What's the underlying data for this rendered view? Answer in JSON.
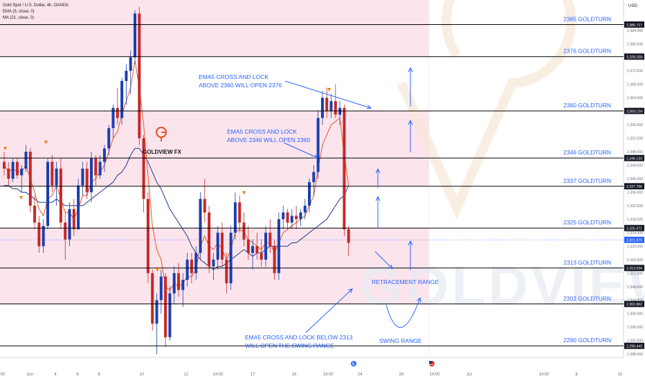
{
  "header": {
    "symbol": "Gold Spot / U.S. Dollar, 4h, OANDA",
    "ema_label": "EMA (5, close, 0)",
    "ma_label": "MA (21, close, 0)",
    "currency": "USD"
  },
  "colors": {
    "zone_pink": "#fce4ec",
    "level_line": "#000000",
    "annotation_blue": "#2962ff",
    "bull_candle": "#1a3fb0",
    "bear_candle": "#c62828",
    "ema_line": "#e8572a",
    "ma_line": "#1e3a8a",
    "price_tag_current": "#2962ff"
  },
  "chart_data": {
    "type": "candlestick",
    "y_range": [
      2287,
      2393
    ],
    "y_ticks": [
      "2,384.000",
      "2,380.000",
      "2,376.000",
      "2,372.000",
      "2,368.000",
      "2,364.000",
      "2,360.000",
      "2,356.000",
      "2,352.000",
      "2,348.000",
      "2,344.000",
      "2,340.000",
      "2,336.000",
      "2,332.000",
      "2,328.000",
      "2,324.000",
      "2,320.000",
      "2,316.000",
      "2,312.000",
      "2,308.000",
      "2,304.000",
      "2,300.000",
      "2,296.000",
      "2,292.000",
      "2,288.000"
    ],
    "x_labels": [
      ":00",
      "Jun",
      "4",
      "6",
      "8",
      "10",
      "12",
      "14:00",
      "17",
      "19",
      "14:00",
      "24",
      "26",
      "14:00",
      "Jul",
      "14:00",
      "8",
      "10"
    ],
    "levels": [
      {
        "value": 2385.717,
        "price_label": "2,385.717",
        "turn_label": "2385 GOLDTURN"
      },
      {
        "value": 2376.209,
        "price_label": "2,376.209",
        "turn_label": "2376 GOLDTURN"
      },
      {
        "value": 2360.104,
        "price_label": "2,360.104",
        "turn_label": "2360 GOLDTURN"
      },
      {
        "value": 2346.133,
        "price_label": "2,346.133",
        "turn_label": "2346 GOLDTURN"
      },
      {
        "value": 2337.766,
        "price_label": "2,337.766",
        "turn_label": "2337 GOLDTURN"
      },
      {
        "value": 2325.371,
        "price_label": "2,325.371",
        "turn_label": "2325 GOLDTURN"
      },
      {
        "value": 2313.534,
        "price_label": "2,313.534",
        "turn_label": "2313 GOLDTURN"
      },
      {
        "value": 2302.862,
        "price_label": "2,302.862",
        "turn_label": "2302 GOLDTURN"
      },
      {
        "value": 2290.443,
        "price_label": "2,290.443",
        "turn_label": "2290 GOLDTURN"
      }
    ],
    "current_price": {
      "value": 2321.875,
      "label": "2,321.875"
    },
    "zones": [
      [
        2376.209,
        2393
      ],
      [
        2337.766,
        2360.104
      ],
      [
        2302.862,
        2325.371
      ]
    ],
    "candles": [
      [
        2345,
        2348,
        2341,
        2343
      ],
      [
        2343,
        2345,
        2338,
        2340
      ],
      [
        2340,
        2346,
        2339,
        2345
      ],
      [
        2345,
        2346,
        2340,
        2341
      ],
      [
        2341,
        2344,
        2336,
        2343
      ],
      [
        2343,
        2350,
        2342,
        2348
      ],
      [
        2348,
        2349,
        2330,
        2332
      ],
      [
        2332,
        2335,
        2325,
        2327
      ],
      [
        2327,
        2329,
        2318,
        2320
      ],
      [
        2320,
        2328,
        2318,
        2326
      ],
      [
        2326,
        2346,
        2325,
        2345
      ],
      [
        2345,
        2347,
        2336,
        2338
      ],
      [
        2338,
        2345,
        2332,
        2343
      ],
      [
        2343,
        2346,
        2325,
        2327
      ],
      [
        2327,
        2330,
        2316,
        2322
      ],
      [
        2322,
        2333,
        2320,
        2331
      ],
      [
        2331,
        2334,
        2323,
        2325
      ],
      [
        2325,
        2340,
        2325,
        2338
      ],
      [
        2338,
        2345,
        2335,
        2343
      ],
      [
        2343,
        2345,
        2334,
        2336
      ],
      [
        2336,
        2348,
        2333,
        2346
      ],
      [
        2346,
        2347,
        2338,
        2341
      ],
      [
        2341,
        2347,
        2340,
        2345
      ],
      [
        2345,
        2350,
        2342,
        2349
      ],
      [
        2349,
        2356,
        2347,
        2355
      ],
      [
        2355,
        2362,
        2352,
        2361
      ],
      [
        2361,
        2367,
        2356,
        2358
      ],
      [
        2358,
        2370,
        2356,
        2369
      ],
      [
        2369,
        2374,
        2362,
        2372
      ],
      [
        2372,
        2378,
        2365,
        2376
      ],
      [
        2376,
        2390,
        2374,
        2389
      ],
      [
        2389,
        2391,
        2350,
        2352
      ],
      [
        2352,
        2353,
        2330,
        2334
      ],
      [
        2334,
        2336,
        2309,
        2312
      ],
      [
        2312,
        2313,
        2295,
        2297
      ],
      [
        2297,
        2306,
        2288,
        2304
      ],
      [
        2304,
        2313,
        2300,
        2311
      ],
      [
        2311,
        2312,
        2290,
        2293
      ],
      [
        2293,
        2308,
        2292,
        2306
      ],
      [
        2306,
        2314,
        2303,
        2312
      ],
      [
        2312,
        2315,
        2305,
        2307
      ],
      [
        2307,
        2312,
        2302,
        2310
      ],
      [
        2310,
        2318,
        2308,
        2316
      ],
      [
        2316,
        2318,
        2309,
        2312
      ],
      [
        2312,
        2320,
        2310,
        2318
      ],
      [
        2318,
        2336,
        2316,
        2334
      ],
      [
        2334,
        2340,
        2327,
        2330
      ],
      [
        2330,
        2332,
        2312,
        2314
      ],
      [
        2314,
        2318,
        2310,
        2316
      ],
      [
        2316,
        2326,
        2313,
        2324
      ],
      [
        2324,
        2327,
        2314,
        2316
      ],
      [
        2316,
        2318,
        2306,
        2309
      ],
      [
        2309,
        2326,
        2307,
        2324
      ],
      [
        2324,
        2336,
        2322,
        2333
      ],
      [
        2333,
        2335,
        2324,
        2327
      ],
      [
        2327,
        2330,
        2320,
        2322
      ],
      [
        2322,
        2326,
        2316,
        2318
      ],
      [
        2318,
        2322,
        2313,
        2320
      ],
      [
        2320,
        2324,
        2316,
        2318
      ],
      [
        2318,
        2322,
        2314,
        2316
      ],
      [
        2316,
        2326,
        2314,
        2324
      ],
      [
        2324,
        2328,
        2318,
        2320
      ],
      [
        2320,
        2322,
        2310,
        2312
      ],
      [
        2312,
        2330,
        2310,
        2328
      ],
      [
        2328,
        2332,
        2325,
        2330
      ],
      [
        2330,
        2331,
        2325,
        2327
      ],
      [
        2327,
        2331,
        2325,
        2329
      ],
      [
        2329,
        2332,
        2325,
        2328
      ],
      [
        2328,
        2331,
        2326,
        2330
      ],
      [
        2330,
        2334,
        2328,
        2332
      ],
      [
        2332,
        2340,
        2330,
        2339
      ],
      [
        2339,
        2344,
        2335,
        2342
      ],
      [
        2342,
        2360,
        2340,
        2358
      ],
      [
        2358,
        2366,
        2356,
        2364
      ],
      [
        2364,
        2367,
        2358,
        2360
      ],
      [
        2360,
        2365,
        2358,
        2363
      ],
      [
        2363,
        2368,
        2358,
        2359
      ],
      [
        2359,
        2363,
        2356,
        2361
      ],
      [
        2361,
        2362,
        2323,
        2325
      ],
      [
        2325,
        2326,
        2317,
        2321
      ]
    ],
    "ema5": [
      2344,
      2342,
      2343,
      2342,
      2342,
      2344,
      2340,
      2336,
      2331,
      2329,
      2334,
      2335,
      2338,
      2334,
      2330,
      2330,
      2328,
      2331,
      2335,
      2335,
      2339,
      2340,
      2342,
      2344,
      2348,
      2352,
      2354,
      2359,
      2363,
      2367,
      2375,
      2367,
      2356,
      2341,
      2326,
      2319,
      2316,
      2308,
      2307,
      2309,
      2308,
      2309,
      2311,
      2311,
      2313,
      2320,
      2323,
      2320,
      2319,
      2321,
      2319,
      2316,
      2319,
      2324,
      2325,
      2324,
      2322,
      2321,
      2320,
      2319,
      2321,
      2321,
      2318,
      2321,
      2324,
      2325,
      2326,
      2327,
      2328,
      2329,
      2332,
      2335,
      2343,
      2350,
      2353,
      2356,
      2357,
      2358,
      2347,
      2338
    ],
    "ma21": [
      2338,
      2338,
      2337,
      2337,
      2336,
      2336,
      2335,
      2334,
      2333,
      2333,
      2333,
      2333,
      2334,
      2333,
      2332,
      2332,
      2332,
      2332,
      2332,
      2333,
      2334,
      2335,
      2336,
      2337,
      2338,
      2339,
      2341,
      2342,
      2344,
      2347,
      2349,
      2349,
      2347,
      2345,
      2342,
      2339,
      2337,
      2334,
      2331,
      2329,
      2327,
      2325,
      2323,
      2320,
      2318,
      2316,
      2315,
      2314,
      2313,
      2314,
      2314,
      2315,
      2316,
      2317,
      2318,
      2319,
      2318,
      2317,
      2318,
      2318,
      2319,
      2320,
      2320,
      2320,
      2320,
      2320,
      2321,
      2321,
      2322,
      2323,
      2324,
      2325,
      2326,
      2327,
      2328,
      2330,
      2332,
      2334,
      2335,
      2338
    ]
  },
  "annotations": {
    "ema_2376": [
      "EMA5 CROSS AND LOCK",
      "ABOVE 2360 WILL OPEN 2376"
    ],
    "ema_2360": [
      "EMA5 CROSS AND LOCK",
      "ABOVE 2346 WILL OPEN 2360"
    ],
    "ema_2313": [
      "EMA5 CROSS AND LOCK BELOW 2313",
      "WILL OPEN THE SWING RANGE"
    ],
    "retracement": "RETRACEMENT RANGE",
    "swing": "SWING RANGE",
    "logo_text": "GOLDVIEW FX",
    "watermark": "GOLDVIEW F"
  }
}
